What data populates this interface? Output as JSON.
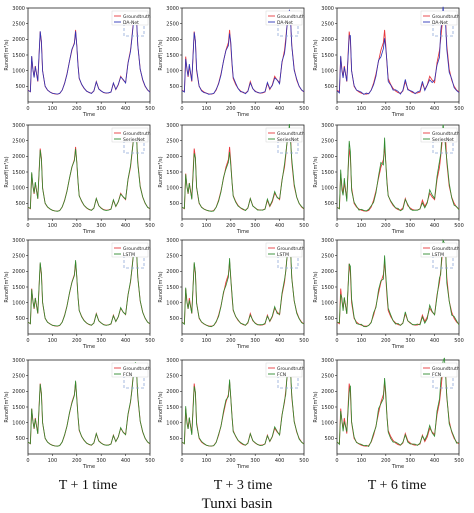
{
  "figure": {
    "columns": [
      "T + 1  time",
      "T + 3  time",
      "T + 6  time"
    ],
    "basin": "Tunxi basin",
    "colors": {
      "truth": "#e8383d",
      "DA-Net": "#2b34b8",
      "SeriesNet": "#2e8b2e",
      "LSTM": "#2e8b2e",
      "FCN": "#2e8b2e",
      "box": "#8fa8d8"
    }
  },
  "chart_data": [
    {
      "type": "line",
      "row": 0,
      "col": 0,
      "xlabel": "Time",
      "ylabel": "Runoff(m³/s)",
      "xlim": [
        0,
        500
      ],
      "ylim": [
        0,
        3000
      ],
      "xticks": [
        0,
        100,
        200,
        300,
        400,
        500
      ],
      "yticks": [
        500,
        1000,
        1500,
        2000,
        2500,
        3000
      ],
      "legend": "top-right",
      "series": [
        {
          "name": "Groundtruth"
        },
        {
          "name": "DA-Net"
        }
      ],
      "zoom_box": true
    },
    {
      "type": "line",
      "row": 0,
      "col": 1,
      "xlabel": "Time",
      "ylabel": "Runoff(m³/s)",
      "xlim": [
        0,
        500
      ],
      "ylim": [
        0,
        3000
      ],
      "xticks": [
        0,
        100,
        200,
        300,
        400,
        500
      ],
      "yticks": [
        500,
        1000,
        1500,
        2000,
        2500,
        3000
      ],
      "legend": "top-right",
      "series": [
        {
          "name": "Groundtruth"
        },
        {
          "name": "DA-Net"
        }
      ],
      "zoom_box": true
    },
    {
      "type": "line",
      "row": 0,
      "col": 2,
      "xlabel": "Time",
      "ylabel": "Runoff(m³/s)",
      "xlim": [
        0,
        500
      ],
      "ylim": [
        0,
        3000
      ],
      "xticks": [
        0,
        100,
        200,
        300,
        400,
        500
      ],
      "yticks": [
        500,
        1000,
        1500,
        2000,
        2500,
        3000
      ],
      "legend": "top-right",
      "series": [
        {
          "name": "Groundtruth"
        },
        {
          "name": "DA-Net"
        }
      ],
      "zoom_box": true
    },
    {
      "type": "line",
      "row": 1,
      "col": 0,
      "xlabel": "Time",
      "ylabel": "Runoff(m³/s)",
      "xlim": [
        0,
        500
      ],
      "ylim": [
        0,
        3000
      ],
      "xticks": [
        0,
        100,
        200,
        300,
        400,
        500
      ],
      "yticks": [
        500,
        1000,
        1500,
        2000,
        2500,
        3000
      ],
      "legend": "top-right",
      "series": [
        {
          "name": "Groundtruth"
        },
        {
          "name": "SeriesNet"
        }
      ],
      "zoom_box": true
    },
    {
      "type": "line",
      "row": 1,
      "col": 1,
      "xlabel": "Time",
      "ylabel": "Runoff(m³/s)",
      "xlim": [
        0,
        500
      ],
      "ylim": [
        0,
        3000
      ],
      "xticks": [
        0,
        100,
        200,
        300,
        400,
        500
      ],
      "yticks": [
        500,
        1000,
        1500,
        2000,
        2500,
        3000
      ],
      "legend": "top-right",
      "series": [
        {
          "name": "Groundtruth"
        },
        {
          "name": "SeriesNet"
        }
      ],
      "zoom_box": true
    },
    {
      "type": "line",
      "row": 1,
      "col": 2,
      "xlabel": "Time",
      "ylabel": "Runoff(m³/s)",
      "xlim": [
        0,
        500
      ],
      "ylim": [
        0,
        3000
      ],
      "xticks": [
        0,
        100,
        200,
        300,
        400,
        500
      ],
      "yticks": [
        500,
        1000,
        1500,
        2000,
        2500,
        3000
      ],
      "legend": "top-right",
      "series": [
        {
          "name": "Groundtruth"
        },
        {
          "name": "SeriesNet"
        }
      ],
      "zoom_box": true
    },
    {
      "type": "line",
      "row": 2,
      "col": 0,
      "xlabel": "Time",
      "ylabel": "Runoff(m³/s)",
      "xlim": [
        0,
        500
      ],
      "ylim": [
        0,
        3000
      ],
      "xticks": [
        0,
        100,
        200,
        300,
        400,
        500
      ],
      "yticks": [
        500,
        1000,
        1500,
        2000,
        2500,
        3000
      ],
      "legend": "top-right",
      "series": [
        {
          "name": "Groundtruth"
        },
        {
          "name": "LSTM"
        }
      ],
      "zoom_box": true
    },
    {
      "type": "line",
      "row": 2,
      "col": 1,
      "xlabel": "Time",
      "ylabel": "Runoff(m³/s)",
      "xlim": [
        0,
        500
      ],
      "ylim": [
        0,
        3000
      ],
      "xticks": [
        0,
        100,
        200,
        300,
        400,
        500
      ],
      "yticks": [
        500,
        1000,
        1500,
        2000,
        2500,
        3000
      ],
      "legend": "top-right",
      "series": [
        {
          "name": "Groundtruth"
        },
        {
          "name": "LSTM"
        }
      ],
      "zoom_box": true
    },
    {
      "type": "line",
      "row": 2,
      "col": 2,
      "xlabel": "Time",
      "ylabel": "Runoff(m³/s)",
      "xlim": [
        0,
        500
      ],
      "ylim": [
        0,
        3000
      ],
      "xticks": [
        0,
        100,
        200,
        300,
        400,
        500
      ],
      "yticks": [
        500,
        1000,
        1500,
        2000,
        2500,
        3000
      ],
      "legend": "top-right",
      "series": [
        {
          "name": "Groundtruth"
        },
        {
          "name": "LSTM"
        }
      ],
      "zoom_box": true
    },
    {
      "type": "line",
      "row": 3,
      "col": 0,
      "xlabel": "Time",
      "ylabel": "Runoff(m³/s)",
      "xlim": [
        0,
        500
      ],
      "ylim": [
        0,
        3000
      ],
      "xticks": [
        0,
        100,
        200,
        300,
        400,
        500
      ],
      "yticks": [
        500,
        1000,
        1500,
        2000,
        2500,
        3000
      ],
      "legend": "top-right",
      "series": [
        {
          "name": "Groundtruth"
        },
        {
          "name": "FCN"
        }
      ],
      "zoom_box": true
    },
    {
      "type": "line",
      "row": 3,
      "col": 1,
      "xlabel": "Time",
      "ylabel": "Runoff(m³/s)",
      "xlim": [
        0,
        500
      ],
      "ylim": [
        0,
        3000
      ],
      "xticks": [
        0,
        100,
        200,
        300,
        400,
        500
      ],
      "yticks": [
        500,
        1000,
        1500,
        2000,
        2500,
        3000
      ],
      "legend": "top-right",
      "series": [
        {
          "name": "Groundtruth"
        },
        {
          "name": "FCN"
        }
      ],
      "zoom_box": true
    },
    {
      "type": "line",
      "row": 3,
      "col": 2,
      "xlabel": "Time",
      "ylabel": "Runoff(m³/s)",
      "xlim": [
        0,
        500
      ],
      "ylim": [
        0,
        3000
      ],
      "xticks": [
        0,
        100,
        200,
        300,
        400,
        500
      ],
      "yticks": [
        500,
        1000,
        1500,
        2000,
        2500,
        3000
      ],
      "legend": "top-right",
      "series": [
        {
          "name": "Groundtruth"
        },
        {
          "name": "FCN"
        }
      ],
      "zoom_box": true
    }
  ],
  "runoff_series": {
    "time": [
      0,
      10,
      15,
      20,
      25,
      30,
      40,
      50,
      55,
      60,
      70,
      80,
      90,
      100,
      110,
      120,
      130,
      140,
      150,
      160,
      170,
      180,
      190,
      195,
      200,
      205,
      210,
      220,
      230,
      240,
      250,
      260,
      270,
      280,
      290,
      300,
      310,
      320,
      330,
      340,
      350,
      360,
      370,
      380,
      390,
      400,
      410,
      420,
      425,
      430,
      435,
      440,
      445,
      450,
      460,
      470,
      480,
      490,
      500
    ],
    "runoff": [
      380,
      330,
      1450,
      1050,
      800,
      1150,
      650,
      2250,
      1950,
      1000,
      500,
      380,
      320,
      280,
      260,
      250,
      270,
      380,
      600,
      900,
      1300,
      1650,
      1900,
      2300,
      1800,
      1200,
      750,
      560,
      430,
      350,
      300,
      280,
      350,
      650,
      420,
      350,
      300,
      280,
      290,
      320,
      600,
      400,
      550,
      820,
      700,
      620,
      1250,
      1650,
      2000,
      2400,
      2700,
      2850,
      2600,
      1800,
      1050,
      700,
      500,
      380,
      320
    ]
  }
}
